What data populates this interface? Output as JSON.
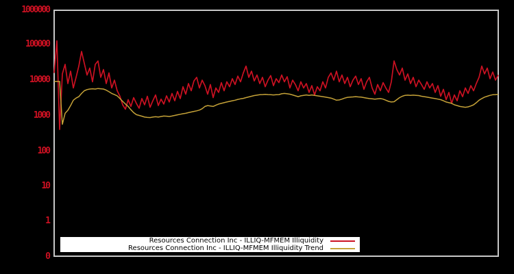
{
  "window": {
    "background": "#000000"
  },
  "chart": {
    "frame_color": "#c8c8c8",
    "axis_label_color": "#cc1122",
    "y_tick_labels": [
      "1000000",
      "100000",
      "10000",
      "1000",
      "100",
      "10",
      "1",
      "0"
    ]
  },
  "legend": {
    "items": [
      {
        "label": "Resources Connection Inc - ILLIQ-MFMEM Illiquidity",
        "color": "#cc1122"
      },
      {
        "label": "Resources Connection Inc - ILLIQ-MFMEM Illiquidity Trend",
        "color": "#c6a338"
      }
    ]
  },
  "chart_data": {
    "type": "line",
    "title": "",
    "xlabel": "",
    "ylabel": "",
    "y_scale": "log",
    "ylim": [
      0,
      1000000
    ],
    "y_ticks": [
      0,
      1,
      10,
      100,
      1000,
      10000,
      100000,
      1000000
    ],
    "x_axis": "time index (no tick labels shown)",
    "grid": false,
    "legend_position": "bottom-left",
    "series": [
      {
        "name": "Resources Connection Inc - ILLIQ-MFMEM Illiquidity",
        "color": "#cc1122",
        "values": [
          16000,
          130000,
          400,
          15000,
          28000,
          8000,
          18000,
          6000,
          12000,
          25000,
          65000,
          30000,
          14000,
          22000,
          9000,
          28000,
          35000,
          12000,
          20000,
          8000,
          16000,
          6000,
          10000,
          5000,
          3500,
          2000,
          1500,
          2800,
          1800,
          3200,
          2200,
          1600,
          3000,
          2000,
          3500,
          1700,
          2600,
          3800,
          1900,
          2900,
          2100,
          3600,
          2400,
          4200,
          2600,
          4800,
          3000,
          6500,
          4000,
          8000,
          5000,
          9500,
          12000,
          6000,
          10000,
          7000,
          4000,
          7500,
          3200,
          6000,
          4500,
          8500,
          5000,
          9000,
          6500,
          11000,
          7500,
          13000,
          9000,
          16000,
          25000,
          12000,
          18000,
          9500,
          14000,
          8000,
          12000,
          6500,
          10000,
          13500,
          7000,
          11000,
          8500,
          14000,
          9000,
          12500,
          6000,
          10000,
          7500,
          5000,
          9000,
          6000,
          8000,
          4500,
          7000,
          3800,
          6500,
          5000,
          9000,
          6000,
          12000,
          16000,
          10000,
          18000,
          9000,
          14000,
          8000,
          12000,
          6500,
          10000,
          13000,
          7500,
          11000,
          5500,
          9000,
          12000,
          6000,
          4000,
          7500,
          5000,
          8500,
          6000,
          4500,
          9000,
          35000,
          20000,
          14000,
          22000,
          10000,
          15000,
          8000,
          12000,
          6500,
          10000,
          7500,
          5500,
          9000,
          6000,
          8000,
          4500,
          7000,
          3500,
          5500,
          2800,
          4500,
          2200,
          3800,
          2600,
          5000,
          3400,
          6000,
          4200,
          7000,
          5000,
          8000,
          12000,
          25000,
          15000,
          22000,
          11000,
          17000,
          10000,
          14000
        ]
      },
      {
        "name": "Resources Connection Inc - ILLIQ-MFMEM Illiquidity Trend",
        "color": "#c6a338",
        "values": [
          9200,
          9200,
          9200,
          560,
          1150,
          1400,
          1900,
          2700,
          3100,
          3400,
          4200,
          5000,
          5400,
          5600,
          5700,
          5600,
          5800,
          5700,
          5600,
          5200,
          4700,
          4200,
          3900,
          3600,
          3000,
          2500,
          2100,
          1800,
          1450,
          1200,
          1050,
          1000,
          950,
          900,
          880,
          870,
          900,
          920,
          900,
          930,
          960,
          950,
          930,
          960,
          1000,
          1040,
          1080,
          1120,
          1150,
          1200,
          1250,
          1300,
          1350,
          1420,
          1550,
          1800,
          1900,
          1850,
          1800,
          1950,
          2100,
          2200,
          2300,
          2400,
          2500,
          2600,
          2700,
          2850,
          2950,
          3050,
          3200,
          3350,
          3500,
          3650,
          3750,
          3850,
          3900,
          3950,
          3900,
          3850,
          3800,
          3850,
          3900,
          4100,
          4200,
          4100,
          4000,
          3800,
          3600,
          3400,
          3600,
          3700,
          3800,
          3700,
          3800,
          3700,
          3600,
          3500,
          3400,
          3300,
          3200,
          3100,
          2900,
          2700,
          2750,
          2900,
          3100,
          3250,
          3300,
          3350,
          3400,
          3350,
          3300,
          3200,
          3100,
          3000,
          2950,
          2900,
          2950,
          3000,
          2900,
          2700,
          2500,
          2400,
          2450,
          2800,
          3200,
          3500,
          3700,
          3750,
          3700,
          3750,
          3700,
          3650,
          3500,
          3400,
          3300,
          3200,
          3100,
          3000,
          2900,
          2800,
          2600,
          2400,
          2300,
          2200,
          2000,
          1900,
          1800,
          1750,
          1700,
          1750,
          1850,
          2000,
          2300,
          2700,
          3000,
          3300,
          3500,
          3700,
          3850,
          3900,
          3950
        ]
      }
    ]
  }
}
